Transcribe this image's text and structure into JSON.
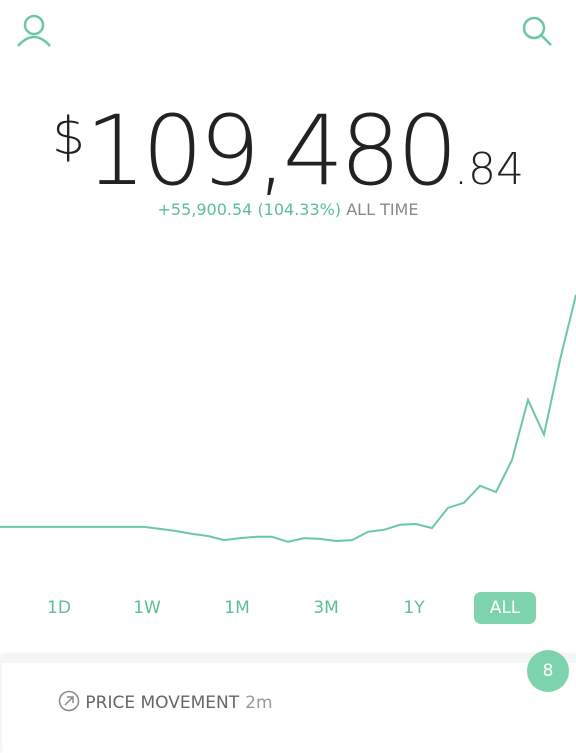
{
  "header": {
    "currency": "$",
    "whole": "109,480",
    "cents": ".84",
    "change": "+55,900.54 (104.33%)",
    "period": "ALL TIME"
  },
  "chart_data": {
    "type": "line",
    "color": "#6cc8a0",
    "ylim": [
      40800,
      122700
    ],
    "values": [
      53600,
      53600,
      53600,
      53600,
      53600,
      53600,
      53600,
      53600,
      53600,
      53600,
      53100,
      52600,
      51900,
      51400,
      50400,
      50900,
      51200,
      51200,
      50000,
      50900,
      50700,
      50200,
      50400,
      52400,
      52900,
      54100,
      54300,
      53300,
      58200,
      59400,
      63500,
      62000,
      69700,
      84200,
      75800,
      93800,
      109500
    ]
  },
  "ranges": [
    "1D",
    "1W",
    "1M",
    "3M",
    "1Y",
    "ALL"
  ],
  "card": {
    "title": "PRICE MOVEMENT",
    "time": "2m",
    "badge": "8"
  }
}
